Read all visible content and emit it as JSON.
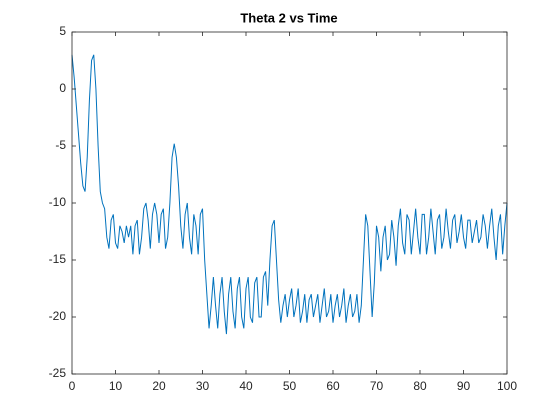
{
  "chart_data": {
    "type": "line",
    "title": "Theta 2 vs Time",
    "x": [
      0,
      0.5,
      1,
      1.5,
      2,
      2.5,
      3,
      3.5,
      4,
      4.5,
      5,
      5.5,
      6,
      6.5,
      7,
      7.5,
      8,
      8.5,
      9,
      9.5,
      10,
      10.5,
      11,
      11.5,
      12,
      12.5,
      13,
      13.5,
      14,
      14.5,
      15,
      15.5,
      16,
      16.5,
      17,
      17.5,
      18,
      18.5,
      19,
      19.5,
      20,
      20.5,
      21,
      21.5,
      22,
      22.5,
      23,
      23.5,
      24,
      24.5,
      25,
      25.5,
      26,
      26.5,
      27,
      27.5,
      28,
      28.5,
      29,
      29.5,
      30,
      30.5,
      31,
      31.5,
      32,
      32.5,
      33,
      33.5,
      34,
      34.5,
      35,
      35.5,
      36,
      36.5,
      37,
      37.5,
      38,
      38.5,
      39,
      39.5,
      40,
      40.5,
      41,
      41.5,
      42,
      42.5,
      43,
      43.5,
      44,
      44.5,
      45,
      45.5,
      46,
      46.5,
      47,
      47.5,
      48,
      48.5,
      49,
      49.5,
      50,
      50.5,
      51,
      51.5,
      52,
      52.5,
      53,
      53.5,
      54,
      54.5,
      55,
      55.5,
      56,
      56.5,
      57,
      57.5,
      58,
      58.5,
      59,
      59.5,
      60,
      60.5,
      61,
      61.5,
      62,
      62.5,
      63,
      63.5,
      64,
      64.5,
      65,
      65.5,
      66,
      66.5,
      67,
      67.5,
      68,
      68.5,
      69,
      69.5,
      70,
      70.5,
      71,
      71.5,
      72,
      72.5,
      73,
      73.5,
      74,
      74.5,
      75,
      75.5,
      76,
      76.5,
      77,
      77.5,
      78,
      78.5,
      79,
      79.5,
      80,
      80.5,
      81,
      81.5,
      82,
      82.5,
      83,
      83.5,
      84,
      84.5,
      85,
      85.5,
      86,
      86.5,
      87,
      87.5,
      88,
      88.5,
      89,
      89.5,
      90,
      90.5,
      91,
      91.5,
      92,
      92.5,
      93,
      93.5,
      94,
      94.5,
      95,
      95.5,
      96,
      96.5,
      97,
      97.5,
      98,
      98.5,
      99,
      99.5,
      100
    ],
    "series": [
      {
        "color": "#0072bd",
        "values": [
          3,
          1,
          -1.5,
          -4,
          -6.5,
          -8.5,
          -9,
          -6,
          -1,
          2.5,
          3,
          0,
          -5,
          -9,
          -10,
          -10.5,
          -13,
          -14,
          -11.5,
          -11,
          -13.5,
          -14,
          -12,
          -12.5,
          -13.5,
          -12,
          -13,
          -12,
          -14.5,
          -12,
          -11.5,
          -14.5,
          -13,
          -10.5,
          -10,
          -11.5,
          -14,
          -11,
          -10,
          -11,
          -13.5,
          -11,
          -10.5,
          -14,
          -13,
          -10,
          -6,
          -4.8,
          -6,
          -8.5,
          -12,
          -14,
          -11,
          -10,
          -13,
          -14.5,
          -11,
          -12,
          -14.5,
          -11,
          -10.5,
          -15,
          -18,
          -21,
          -19,
          -16.5,
          -19,
          -21,
          -18,
          -16.5,
          -19.5,
          -21.5,
          -18,
          -16.5,
          -19.5,
          -21,
          -17.5,
          -16.5,
          -20,
          -21,
          -17.5,
          -16.5,
          -20,
          -20.5,
          -17,
          -16.5,
          -20,
          -20,
          -16.5,
          -16,
          -19,
          -15,
          -12,
          -11.5,
          -15,
          -18.5,
          -20.5,
          -19,
          -18,
          -20,
          -18.5,
          -17.5,
          -20,
          -19,
          -17.5,
          -20.5,
          -19.5,
          -18,
          -20.5,
          -18.5,
          -18,
          -20,
          -19,
          -18,
          -20.5,
          -19,
          -17.5,
          -20,
          -19.5,
          -18,
          -20.5,
          -19,
          -18,
          -20,
          -19,
          -17.5,
          -20.5,
          -19,
          -18,
          -20,
          -19.5,
          -18,
          -20.5,
          -19,
          -15,
          -11,
          -12,
          -16,
          -20,
          -17,
          -12,
          -13,
          -16,
          -13,
          -12,
          -15,
          -14.5,
          -11.5,
          -13,
          -15.5,
          -12,
          -10.5,
          -13.5,
          -14.5,
          -11,
          -11.5,
          -14.5,
          -12.5,
          -10.5,
          -13,
          -14.5,
          -11,
          -11,
          -14.5,
          -13,
          -10.5,
          -12.5,
          -14.5,
          -11.5,
          -11,
          -14,
          -13,
          -10.5,
          -12.5,
          -14,
          -11.5,
          -11,
          -13.5,
          -12.5,
          -11,
          -13,
          -14,
          -11.5,
          -11.5,
          -13.5,
          -12.5,
          -11.5,
          -13.5,
          -13,
          -11,
          -12,
          -14,
          -12,
          -10.5,
          -13,
          -15,
          -12,
          -11,
          -14.5,
          -12,
          -10
        ]
      }
    ],
    "xlim": [
      0,
      100
    ],
    "xticks": [
      0,
      10,
      20,
      30,
      40,
      50,
      60,
      70,
      80,
      90,
      100
    ],
    "ylim": [
      -25,
      5
    ],
    "yticks": [
      -25,
      -20,
      -15,
      -10,
      -5,
      0,
      5
    ]
  }
}
